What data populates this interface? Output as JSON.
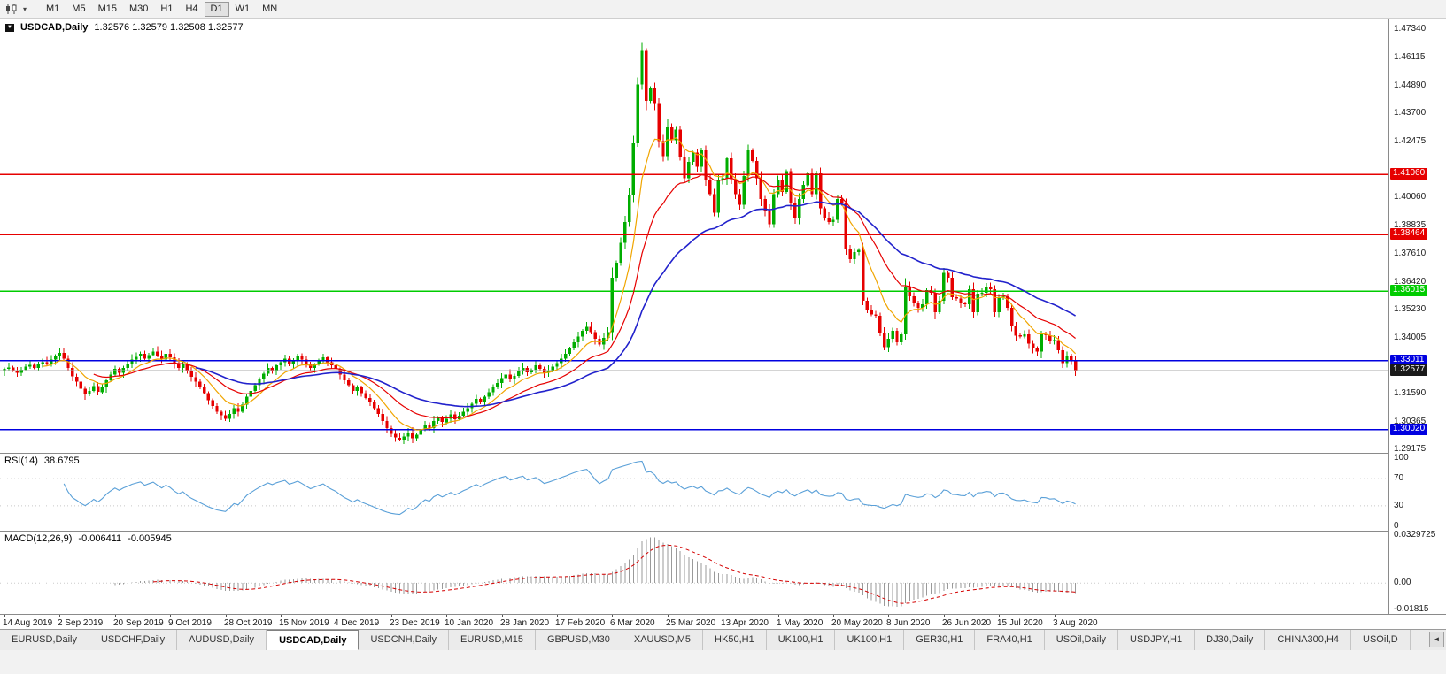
{
  "toolbar": {
    "timeframes": [
      {
        "label": "M1",
        "active": false
      },
      {
        "label": "M5",
        "active": false
      },
      {
        "label": "M15",
        "active": false
      },
      {
        "label": "M30",
        "active": false
      },
      {
        "label": "H1",
        "active": false
      },
      {
        "label": "H4",
        "active": false
      },
      {
        "label": "D1",
        "active": true
      },
      {
        "label": "W1",
        "active": false
      },
      {
        "label": "MN",
        "active": false
      }
    ]
  },
  "chart": {
    "title_symbol": "USDCAD,Daily",
    "title_ohlc": "1.32576 1.32579 1.32508 1.32577"
  },
  "rsi": {
    "title": "RSI(14)",
    "value": "38.6795",
    "scale": [
      {
        "text": "100",
        "value": 100
      },
      {
        "text": "70",
        "value": 70
      },
      {
        "text": "30",
        "value": 30
      },
      {
        "text": "0",
        "value": 0
      }
    ],
    "levels": [
      70,
      30
    ]
  },
  "macd": {
    "title": "MACD(12,26,9)",
    "value_main": "-0.006411",
    "value_signal": "-0.005945",
    "scale": [
      {
        "text": "0.0329725",
        "value": 0.0329725
      },
      {
        "text": "0.00",
        "value": 0
      },
      {
        "text": "-0.01815",
        "value": -0.01815
      }
    ]
  },
  "tabs": {
    "items": [
      "EURUSD,Daily",
      "USDCHF,Daily",
      "AUDUSD,Daily",
      "USDCAD,Daily",
      "USDCNH,Daily",
      "EURUSD,M15",
      "GBPUSD,M30",
      "XAUUSD,M5",
      "HK50,H1",
      "UK100,H1",
      "UK100,H1",
      "GER30,H1",
      "FRA40,H1",
      "USOil,Daily",
      "USDJPY,H1",
      "DJ30,Daily",
      "CHINA300,H4",
      "USOil,D"
    ],
    "active_index": 3,
    "scroll_left_icon": "◄"
  },
  "chart_data": {
    "type": "candlestick",
    "symbol": "USDCAD",
    "timeframe": "Daily",
    "ohlc_current": {
      "open": 1.32576,
      "high": 1.32579,
      "low": 1.32508,
      "close": 1.32577
    },
    "ylim": [
      1.29175,
      1.4734
    ],
    "y_ticks": [
      "1.47340",
      "1.46115",
      "1.44890",
      "1.43700",
      "1.42475",
      "1.40060",
      "1.38835",
      "1.37610",
      "1.36420",
      "1.35230",
      "1.34005",
      "1.31590",
      "1.30365",
      "1.29175"
    ],
    "x_labels": [
      "14 Aug 2019",
      "2 Sep 2019",
      "20 Sep 2019",
      "9 Oct 2019",
      "28 Oct 2019",
      "15 Nov 2019",
      "4 Dec 2019",
      "23 Dec 2019",
      "10 Jan 2020",
      "28 Jan 2020",
      "17 Feb 2020",
      "6 Mar 2020",
      "25 Mar 2020",
      "13 Apr 2020",
      "1 May 2020",
      "20 May 2020",
      "8 Jun 2020",
      "26 Jun 2020",
      "15 Jul 2020",
      "3 Aug 2020"
    ],
    "x_label_step": 13,
    "closes": [
      1.3265,
      1.3272,
      1.3258,
      1.3248,
      1.3262,
      1.3275,
      1.3282,
      1.327,
      1.3285,
      1.3295,
      1.3288,
      1.3305,
      1.332,
      1.3335,
      1.331,
      1.327,
      1.3232,
      1.321,
      1.318,
      1.3155,
      1.317,
      1.319,
      1.3165,
      1.3185,
      1.3215,
      1.324,
      1.3265,
      1.3248,
      1.327,
      1.3285,
      1.3305,
      1.3318,
      1.333,
      1.331,
      1.3325,
      1.334,
      1.3322,
      1.3305,
      1.333,
      1.3315,
      1.329,
      1.327,
      1.3285,
      1.3255,
      1.323,
      1.321,
      1.3185,
      1.316,
      1.313,
      1.3105,
      1.308,
      1.3065,
      1.305,
      1.307,
      1.3095,
      1.308,
      1.311,
      1.3145,
      1.317,
      1.3195,
      1.322,
      1.3245,
      1.327,
      1.3258,
      1.328,
      1.3295,
      1.331,
      1.3285,
      1.33,
      1.332,
      1.3305,
      1.3288,
      1.327,
      1.3285,
      1.33,
      1.3315,
      1.3295,
      1.328,
      1.3265,
      1.324,
      1.3215,
      1.3195,
      1.317,
      1.3185,
      1.316,
      1.314,
      1.312,
      1.3095,
      1.307,
      1.304,
      1.301,
      1.2985,
      1.2968,
      1.2958,
      1.2972,
      1.299,
      1.2965,
      1.298,
      1.3005,
      1.3025,
      1.301,
      1.304,
      1.3055,
      1.3035,
      1.305,
      1.3068,
      1.3048,
      1.3062,
      1.308,
      1.3095,
      1.3115,
      1.3135,
      1.312,
      1.3145,
      1.3165,
      1.3185,
      1.3205,
      1.3225,
      1.324,
      1.322,
      1.3235,
      1.3255,
      1.327,
      1.325,
      1.3262,
      1.328,
      1.3265,
      1.3248,
      1.326,
      1.3275,
      1.329,
      1.331,
      1.333,
      1.3355,
      1.338,
      1.3405,
      1.343,
      1.3448,
      1.3425,
      1.3395,
      1.337,
      1.34,
      1.3425,
      1.366,
      1.3725,
      1.381,
      1.39,
      1.4015,
      1.424,
      1.4495,
      1.464,
      1.4425,
      1.448,
      1.441,
      1.425,
      1.4185,
      1.431,
      1.4255,
      1.43,
      1.418,
      1.409,
      1.416,
      1.42,
      1.414,
      1.421,
      1.408,
      1.402,
      1.394,
      1.408,
      1.409,
      1.4175,
      1.4085,
      1.402,
      1.3975,
      1.41,
      1.421,
      1.4165,
      1.409,
      1.4,
      1.395,
      1.389,
      1.402,
      1.408,
      1.403,
      1.412,
      1.398,
      1.392,
      1.4,
      1.406,
      1.411,
      1.402,
      1.411,
      1.396,
      1.392,
      1.39,
      1.391,
      1.4,
      1.3985,
      1.3785,
      1.374,
      1.377,
      1.378,
      1.356,
      1.352,
      1.35,
      1.3495,
      1.342,
      1.336,
      1.3395,
      1.343,
      1.338,
      1.3415,
      1.362,
      1.358,
      1.355,
      1.353,
      1.3545,
      1.3605,
      1.3595,
      1.351,
      1.356,
      1.368,
      1.366,
      1.3575,
      1.357,
      1.355,
      1.3545,
      1.361,
      1.351,
      1.359,
      1.3595,
      1.362,
      1.361,
      1.351,
      1.3575,
      1.358,
      1.353,
      1.345,
      1.341,
      1.3405,
      1.3415,
      1.3375,
      1.3355,
      1.334,
      1.3415,
      1.341,
      1.3385,
      1.339,
      1.3345,
      1.329,
      1.332,
      1.33,
      1.32577
    ],
    "hlines": [
      {
        "price": 1.4106,
        "label": "1.41060",
        "color": "#e60000"
      },
      {
        "price": 1.38464,
        "label": "1.38464",
        "color": "#e60000"
      },
      {
        "price": 1.36015,
        "label": "1.36015",
        "color": "#00cc00"
      },
      {
        "price": 1.33011,
        "label": "1.33011",
        "color": "#0000e0"
      },
      {
        "price": 1.3002,
        "label": "1.30020",
        "color": "#0000e0"
      }
    ],
    "current_price": {
      "value": 1.32577,
      "label": "1.32577",
      "line_color": "#a8a8a8",
      "badge_color": "#1a1a1a"
    },
    "colors": {
      "bull": "#00ad00",
      "bear": "#e60000",
      "ma_fast": "#f0a500",
      "ma_mid": "#e60000",
      "ma_slow": "#2222cc",
      "rsi": "#5aa0d8",
      "macd_hist": "#9a9a9a",
      "macd_signal": "#d40000"
    },
    "ma_periods": [
      9,
      21,
      45
    ],
    "rsi_period": 14,
    "macd_params": [
      12,
      26,
      9
    ],
    "macd_range": [
      -0.01815,
      0.0329725
    ]
  }
}
